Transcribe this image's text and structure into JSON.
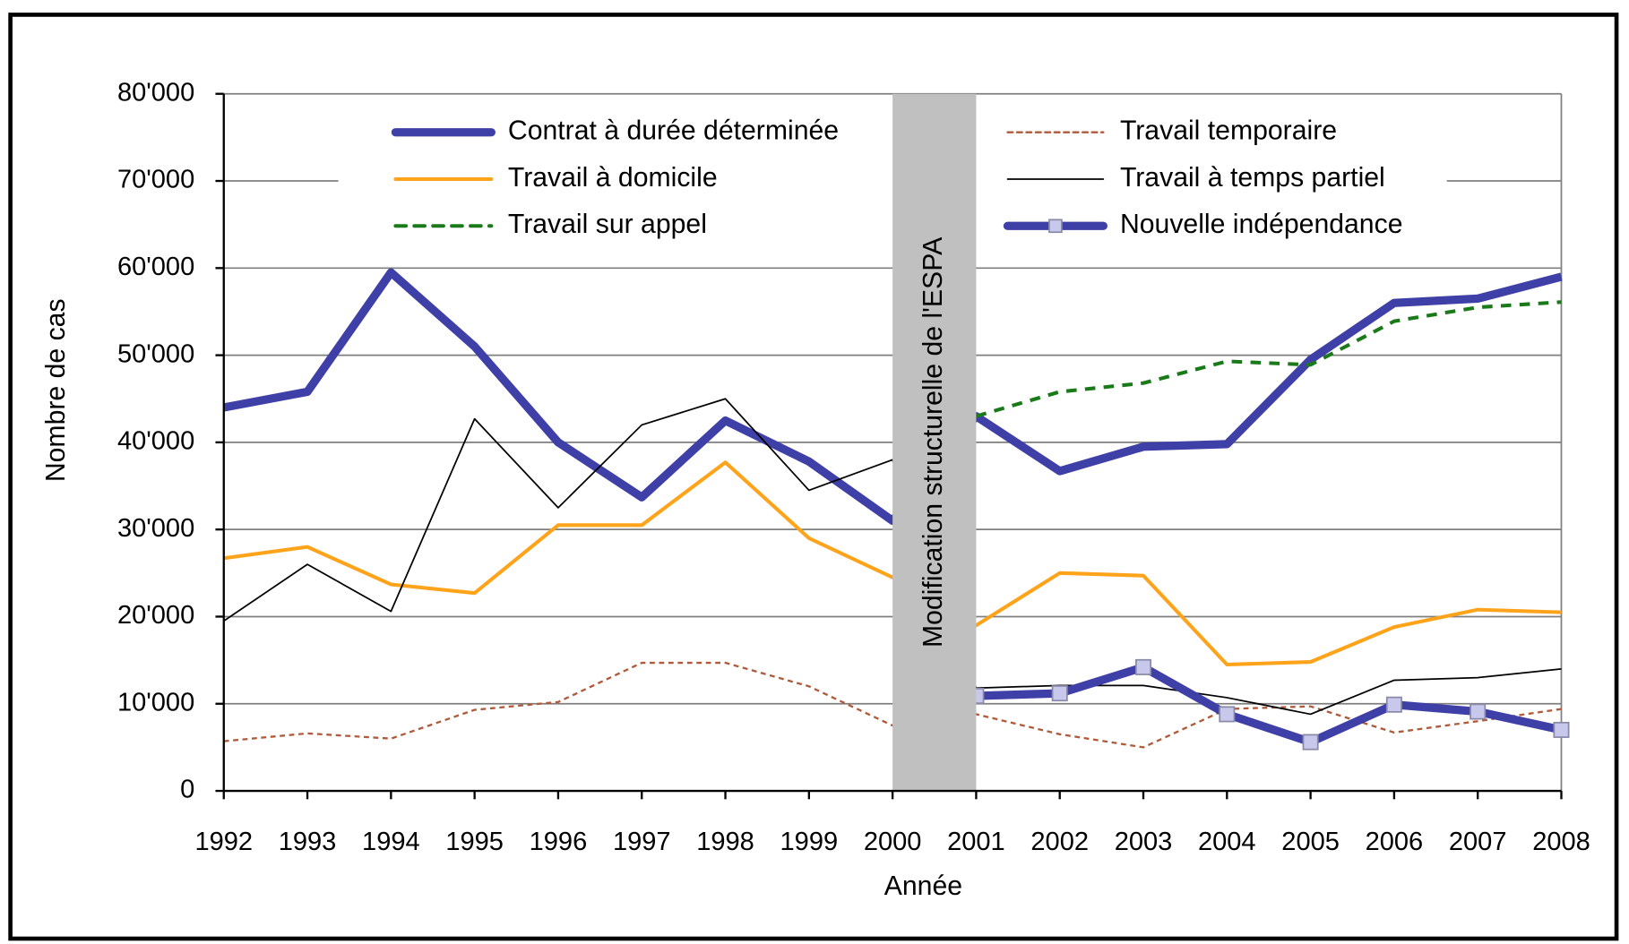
{
  "chart_data": {
    "type": "line",
    "x_label": "Année",
    "y_label": "Nombre de cas",
    "annotation": "Modification structurelle de l'ESPA",
    "categories": [
      "1992",
      "1993",
      "1994",
      "1995",
      "1996",
      "1997",
      "1998",
      "1999",
      "2000",
      "2001",
      "2002",
      "2003",
      "2004",
      "2005",
      "2006",
      "2007",
      "2008"
    ],
    "ylim": [
      0,
      80000
    ],
    "yticks": [
      {
        "value": 0,
        "label": "0"
      },
      {
        "value": 10000,
        "label": "10'000"
      },
      {
        "value": 20000,
        "label": "20'000"
      },
      {
        "value": 30000,
        "label": "30'000"
      },
      {
        "value": 40000,
        "label": "40'000"
      },
      {
        "value": 50000,
        "label": "50'000"
      },
      {
        "value": 60000,
        "label": "60'000"
      },
      {
        "value": 70000,
        "label": "70'000"
      },
      {
        "value": 80000,
        "label": "80'000"
      }
    ],
    "grid": true,
    "series": [
      {
        "name": "Contrat à durée déterminée",
        "color": "#3f3fa8",
        "line_style": "solid",
        "values": [
          44000,
          45800,
          59500,
          51000,
          40000,
          33700,
          42500,
          37800,
          31000,
          43000,
          36700,
          39500,
          39800,
          49500,
          56000,
          56500,
          59000
        ]
      },
      {
        "name": "Travail temporaire",
        "color": "#b05a3a",
        "line_style": "dashed",
        "values": [
          5700,
          6600,
          6000,
          9300,
          10200,
          14700,
          14700,
          12000,
          7500,
          8800,
          6500,
          5000,
          9400,
          9700,
          6700,
          8000,
          9400
        ]
      },
      {
        "name": "Travail à domicile",
        "color": "#ffa31a",
        "line_style": "solid",
        "values": [
          26700,
          28000,
          23700,
          22700,
          30500,
          30500,
          37700,
          29000,
          24500,
          19000,
          25000,
          24700,
          14500,
          14800,
          18800,
          20800,
          20500
        ]
      },
      {
        "name": "Travail à temps partiel",
        "color": "#000000",
        "line_style": "solid",
        "values": [
          19500,
          26000,
          20600,
          42700,
          32500,
          42000,
          45000,
          34500,
          38000,
          11800,
          12100,
          12100,
          10700,
          8800,
          12700,
          13000,
          14000
        ]
      },
      {
        "name": "Travail sur appel",
        "color": "#1a7a1a",
        "line_style": "dashed",
        "values": [
          null,
          null,
          null,
          null,
          null,
          null,
          null,
          null,
          null,
          43000,
          45800,
          46800,
          49300,
          48900,
          53900,
          55500,
          56100
        ]
      },
      {
        "name": "Nouvelle indépendance",
        "color": "#3f3fa8",
        "line_style": "solid",
        "marker": "square",
        "values": [
          null,
          null,
          null,
          null,
          null,
          null,
          null,
          null,
          null,
          10900,
          11200,
          14200,
          8800,
          5600,
          9900,
          9100,
          7000
        ]
      }
    ]
  }
}
